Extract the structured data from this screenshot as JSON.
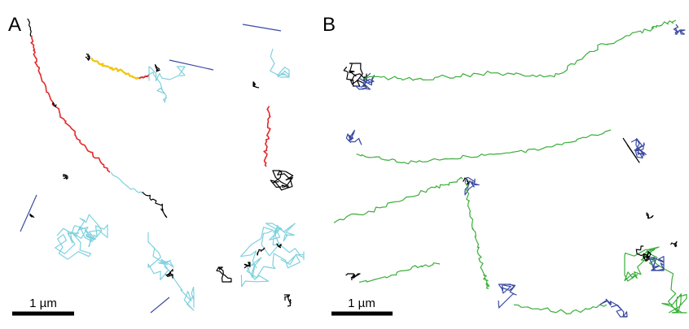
{
  "panels": [
    {
      "label": "A",
      "scale_bar": "1 µm"
    },
    {
      "label": "B",
      "scale_bar": "1 µm"
    }
  ],
  "colors": {
    "cyan": "#7fd1de",
    "navy": "#3a4aa3",
    "red": "#e3292b",
    "yellow": "#f2c40c",
    "green": "#3aae3a",
    "black": "#000000"
  }
}
